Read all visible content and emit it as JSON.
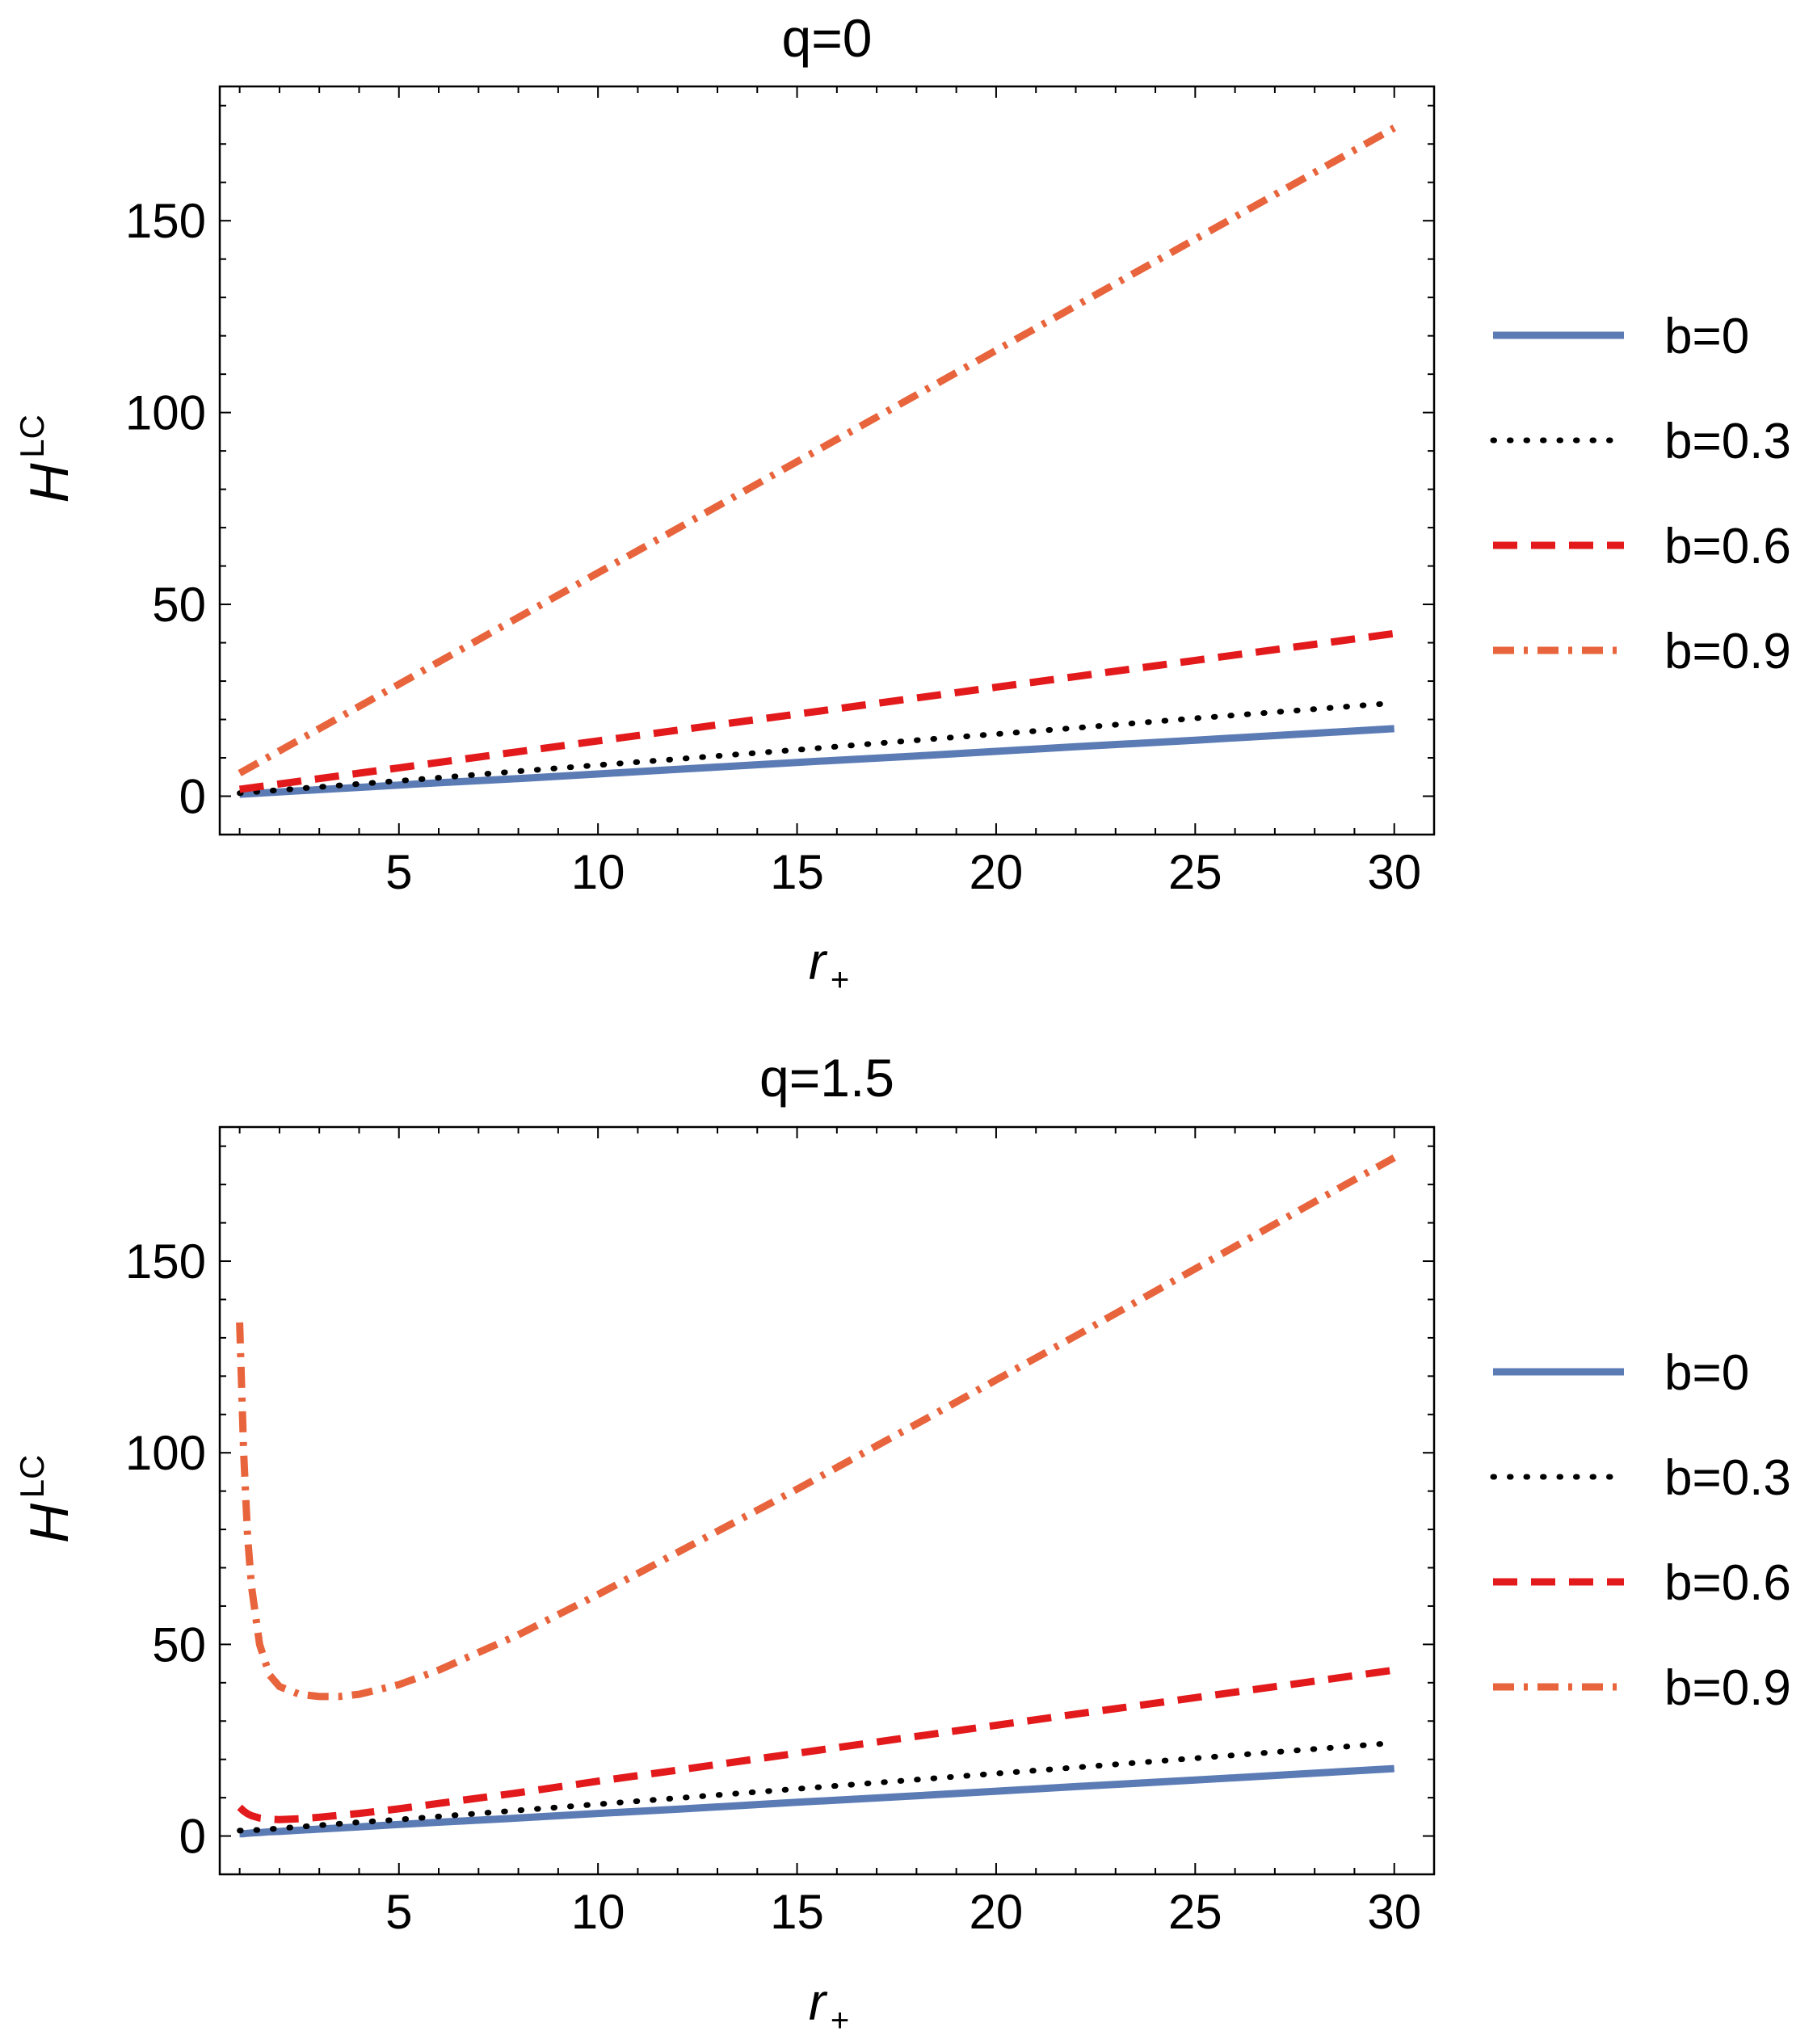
{
  "chart_data": [
    {
      "type": "line",
      "title": "q=0",
      "xlabel": "r",
      "xlabel_sub": "+",
      "ylabel": "H",
      "ylabel_sup": "LC",
      "xlim": [
        0.5,
        31
      ],
      "ylim": [
        -10,
        185
      ],
      "xticks": [
        5,
        10,
        15,
        20,
        25,
        30
      ],
      "yticks": [
        0,
        50,
        100,
        150
      ],
      "grid": false,
      "legend_position": "right",
      "x": [
        1,
        2,
        3,
        4,
        5,
        6,
        8,
        10,
        12,
        15,
        18,
        20,
        22,
        25,
        28,
        30
      ],
      "series": [
        {
          "name": "b=0",
          "color": "#5b7bb5",
          "style": "solid",
          "values": [
            0.5,
            1.1,
            1.7,
            2.3,
            2.9,
            3.5,
            4.6,
            5.8,
            7.0,
            8.8,
            10.5,
            11.7,
            12.9,
            14.6,
            16.4,
            17.6
          ]
        },
        {
          "name": "b=0.3",
          "color": "#000000",
          "style": "dotted",
          "values": [
            0.8,
            1.6,
            2.4,
            3.2,
            4.0,
            4.8,
            6.5,
            8.1,
            9.7,
            12.1,
            14.6,
            16.2,
            17.8,
            20.3,
            22.7,
            24.3
          ]
        },
        {
          "name": "b=0.6",
          "color": "#e31a1c",
          "style": "dashed",
          "values": [
            1.8,
            3.2,
            4.6,
            6.0,
            7.4,
            8.8,
            11.6,
            14.4,
            17.2,
            21.4,
            25.6,
            28.4,
            31.2,
            35.4,
            39.6,
            42.4
          ]
        },
        {
          "name": "b=0.9",
          "color": "#e8643c",
          "style": "dashdot",
          "values": [
            6,
            11.8,
            17.6,
            23.4,
            29.2,
            35,
            46.6,
            58.2,
            69.8,
            87.2,
            104.6,
            116.2,
            127.8,
            145.2,
            162.6,
            174.2
          ]
        }
      ]
    },
    {
      "type": "line",
      "title": "q=1.5",
      "xlabel": "r",
      "xlabel_sub": "+",
      "ylabel": "H",
      "ylabel_sup": "LC",
      "xlim": [
        0.5,
        31
      ],
      "ylim": [
        -10,
        185
      ],
      "xticks": [
        5,
        10,
        15,
        20,
        25,
        30
      ],
      "yticks": [
        0,
        50,
        100,
        150
      ],
      "grid": false,
      "legend_position": "right",
      "x": [
        1,
        1.1,
        1.2,
        1.3,
        1.5,
        1.75,
        2,
        2.5,
        3,
        3.5,
        4,
        5,
        6,
        8,
        10,
        12,
        15,
        18,
        20,
        22,
        25,
        28,
        30
      ],
      "series": [
        {
          "name": "b=0",
          "color": "#5b7bb5",
          "style": "solid",
          "values": [
            0.6,
            0.6,
            0.7,
            0.8,
            0.9,
            1.1,
            1.2,
            1.5,
            1.8,
            2.1,
            2.4,
            3.0,
            3.6,
            4.7,
            5.9,
            7.0,
            8.8,
            10.5,
            11.7,
            12.9,
            14.6,
            16.4,
            17.6
          ]
        },
        {
          "name": "b=0.3",
          "color": "#000000",
          "style": "dotted",
          "values": [
            1.4,
            1.4,
            1.4,
            1.5,
            1.6,
            1.8,
            2.0,
            2.4,
            2.8,
            3.2,
            3.6,
            4.3,
            5.1,
            6.7,
            8.3,
            9.9,
            12.3,
            14.7,
            16.3,
            17.9,
            20.3,
            22.7,
            24.3
          ]
        },
        {
          "name": "b=0.6",
          "color": "#e31a1c",
          "style": "dashed",
          "values": [
            7.5,
            6.5,
            5.8,
            5.3,
            4.7,
            4.4,
            4.3,
            4.5,
            4.9,
            5.4,
            5.9,
            7.1,
            8.5,
            11.3,
            14.3,
            17.2,
            21.6,
            26.0,
            28.9,
            31.8,
            36.1,
            40.4,
            43.3
          ]
        },
        {
          "name": "b=0.9",
          "color": "#e8643c",
          "style": "dashdot",
          "values": [
            134,
            100,
            78,
            65,
            50,
            42,
            39,
            37,
            36.4,
            36.4,
            37,
            39.5,
            43.3,
            52.5,
            63,
            74,
            90.5,
            107.5,
            119,
            130.5,
            148,
            165.5,
            177
          ]
        }
      ]
    }
  ]
}
